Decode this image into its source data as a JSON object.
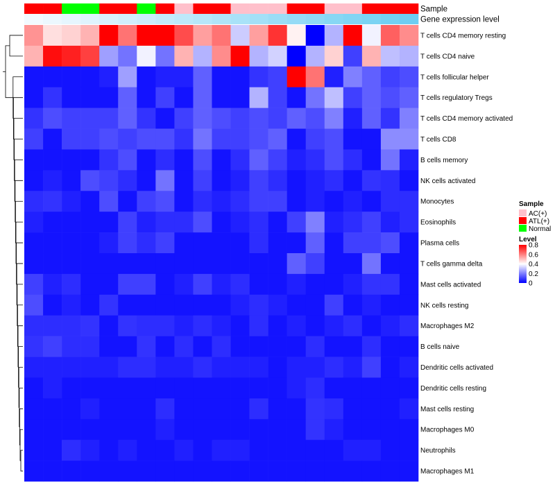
{
  "chart_data": {
    "type": "heatmap",
    "title": "",
    "annotation_tracks": [
      {
        "name": "Sample",
        "values": [
          "ATL(+)",
          "ATL(+)",
          "Normal",
          "Normal",
          "ATL(+)",
          "ATL(+)",
          "Normal",
          "ATL(+)",
          "AC(+)",
          "ATL(+)",
          "ATL(+)",
          "AC(+)",
          "AC(+)",
          "AC(+)",
          "ATL(+)",
          "ATL(+)",
          "AC(+)",
          "AC(+)",
          "ATL(+)",
          "ATL(+)",
          "ATL(+)"
        ]
      },
      {
        "name": "Gene expression level",
        "values": [
          0.02,
          0.06,
          0.1,
          0.14,
          0.19,
          0.23,
          0.27,
          0.32,
          0.36,
          0.4,
          0.45,
          0.49,
          0.53,
          0.58,
          0.62,
          0.66,
          0.71,
          0.75,
          0.79,
          0.84,
          0.88
        ]
      }
    ],
    "rows": [
      "T cells CD4 memory resting",
      "T cells CD4 naive",
      "T cells follicular helper",
      "T cells regulatory  Tregs",
      "T cells CD4 memory activated",
      "T cells CD8",
      "B cells memory",
      "NK cells activated",
      "Monocytes",
      "Eosinophils",
      "Plasma cells",
      "T cells gamma delta",
      "Mast cells activated",
      "NK cells resting",
      "Macrophages M2",
      "B cells naive",
      "Dendritic cells activated",
      "Dendritic cells resting",
      "Mast cells resting",
      "Macrophages M0",
      "Neutrophils",
      "Macrophages M1"
    ],
    "values": [
      [
        0.57,
        0.45,
        0.47,
        0.52,
        0.8,
        0.62,
        0.8,
        0.8,
        0.68,
        0.55,
        0.62,
        0.32,
        0.55,
        0.72,
        0.42,
        0.0,
        0.28,
        0.8,
        0.38,
        0.65,
        0.58
      ],
      [
        0.52,
        0.78,
        0.75,
        0.7,
        0.25,
        0.18,
        0.38,
        0.18,
        0.52,
        0.28,
        0.58,
        0.8,
        0.28,
        0.33,
        0.0,
        0.28,
        0.47,
        0.1,
        0.52,
        0.3,
        0.28
      ],
      [
        0.03,
        0.03,
        0.03,
        0.03,
        0.05,
        0.25,
        0.03,
        0.05,
        0.05,
        0.15,
        0.03,
        0.03,
        0.08,
        0.1,
        0.8,
        0.62,
        0.05,
        0.2,
        0.15,
        0.1,
        0.12
      ],
      [
        0.03,
        0.08,
        0.03,
        0.03,
        0.03,
        0.15,
        0.03,
        0.1,
        0.03,
        0.15,
        0.03,
        0.03,
        0.28,
        0.1,
        0.03,
        0.18,
        0.3,
        0.1,
        0.15,
        0.12,
        0.15
      ],
      [
        0.08,
        0.12,
        0.1,
        0.1,
        0.1,
        0.15,
        0.08,
        0.03,
        0.1,
        0.15,
        0.12,
        0.1,
        0.12,
        0.1,
        0.15,
        0.12,
        0.2,
        0.05,
        0.15,
        0.08,
        0.2
      ],
      [
        0.1,
        0.03,
        0.1,
        0.1,
        0.12,
        0.1,
        0.12,
        0.12,
        0.08,
        0.18,
        0.1,
        0.1,
        0.12,
        0.15,
        0.03,
        0.1,
        0.12,
        0.03,
        0.03,
        0.22,
        0.22
      ],
      [
        0.03,
        0.03,
        0.03,
        0.03,
        0.08,
        0.12,
        0.03,
        0.07,
        0.03,
        0.12,
        0.03,
        0.07,
        0.15,
        0.1,
        0.05,
        0.07,
        0.12,
        0.07,
        0.03,
        0.18,
        0.05
      ],
      [
        0.03,
        0.05,
        0.03,
        0.12,
        0.1,
        0.07,
        0.03,
        0.18,
        0.03,
        0.1,
        0.03,
        0.05,
        0.1,
        0.07,
        0.03,
        0.05,
        0.07,
        0.03,
        0.08,
        0.07,
        0.03
      ],
      [
        0.07,
        0.08,
        0.05,
        0.03,
        0.12,
        0.03,
        0.1,
        0.12,
        0.03,
        0.07,
        0.05,
        0.07,
        0.1,
        0.1,
        0.03,
        0.05,
        0.03,
        0.05,
        0.03,
        0.07,
        0.07
      ],
      [
        0.05,
        0.03,
        0.03,
        0.03,
        0.03,
        0.1,
        0.05,
        0.07,
        0.07,
        0.12,
        0.03,
        0.05,
        0.07,
        0.03,
        0.1,
        0.2,
        0.05,
        0.07,
        0.1,
        0.05,
        0.07
      ],
      [
        0.03,
        0.03,
        0.03,
        0.03,
        0.05,
        0.1,
        0.07,
        0.1,
        0.03,
        0.03,
        0.03,
        0.03,
        0.07,
        0.03,
        0.03,
        0.15,
        0.03,
        0.1,
        0.1,
        0.12,
        0.03
      ],
      [
        0.03,
        0.03,
        0.03,
        0.03,
        0.03,
        0.03,
        0.03,
        0.03,
        0.03,
        0.03,
        0.03,
        0.03,
        0.03,
        0.03,
        0.15,
        0.1,
        0.03,
        0.03,
        0.18,
        0.03,
        0.03
      ],
      [
        0.1,
        0.05,
        0.07,
        0.03,
        0.03,
        0.1,
        0.1,
        0.03,
        0.05,
        0.1,
        0.05,
        0.07,
        0.03,
        0.03,
        0.05,
        0.03,
        0.03,
        0.05,
        0.08,
        0.08,
        0.03
      ],
      [
        0.12,
        0.03,
        0.05,
        0.03,
        0.08,
        0.03,
        0.03,
        0.03,
        0.03,
        0.03,
        0.03,
        0.05,
        0.07,
        0.05,
        0.03,
        0.03,
        0.1,
        0.03,
        0.05,
        0.03,
        0.03
      ],
      [
        0.07,
        0.07,
        0.07,
        0.08,
        0.03,
        0.08,
        0.07,
        0.07,
        0.05,
        0.07,
        0.05,
        0.03,
        0.07,
        0.03,
        0.05,
        0.03,
        0.05,
        0.07,
        0.03,
        0.05,
        0.07
      ],
      [
        0.08,
        0.1,
        0.07,
        0.07,
        0.03,
        0.03,
        0.08,
        0.03,
        0.07,
        0.03,
        0.07,
        0.03,
        0.03,
        0.03,
        0.03,
        0.07,
        0.03,
        0.03,
        0.07,
        0.03,
        0.03
      ],
      [
        0.05,
        0.05,
        0.05,
        0.05,
        0.05,
        0.07,
        0.07,
        0.05,
        0.05,
        0.07,
        0.05,
        0.05,
        0.05,
        0.03,
        0.05,
        0.05,
        0.07,
        0.05,
        0.1,
        0.03,
        0.05
      ],
      [
        0.03,
        0.05,
        0.03,
        0.03,
        0.03,
        0.03,
        0.03,
        0.03,
        0.03,
        0.03,
        0.03,
        0.03,
        0.03,
        0.03,
        0.05,
        0.07,
        0.03,
        0.03,
        0.03,
        0.03,
        0.03
      ],
      [
        0.03,
        0.03,
        0.03,
        0.05,
        0.03,
        0.03,
        0.03,
        0.07,
        0.03,
        0.03,
        0.03,
        0.03,
        0.07,
        0.03,
        0.03,
        0.08,
        0.07,
        0.03,
        0.03,
        0.03,
        0.05
      ],
      [
        0.03,
        0.03,
        0.03,
        0.03,
        0.03,
        0.03,
        0.03,
        0.05,
        0.03,
        0.03,
        0.03,
        0.03,
        0.03,
        0.03,
        0.03,
        0.08,
        0.05,
        0.03,
        0.03,
        0.03,
        0.03
      ],
      [
        0.03,
        0.03,
        0.07,
        0.05,
        0.03,
        0.05,
        0.03,
        0.03,
        0.05,
        0.03,
        0.05,
        0.05,
        0.03,
        0.03,
        0.03,
        0.03,
        0.03,
        0.05,
        0.05,
        0.03,
        0.03
      ],
      [
        0.03,
        0.03,
        0.03,
        0.03,
        0.03,
        0.03,
        0.03,
        0.03,
        0.03,
        0.03,
        0.03,
        0.03,
        0.03,
        0.03,
        0.03,
        0.03,
        0.03,
        0.03,
        0.03,
        0.03,
        0.03
      ]
    ],
    "color_scale": {
      "min": 0,
      "max": 0.8,
      "low": "#0000ff",
      "mid": "#ffffff",
      "high": "#ff0000",
      "mid_value": 0.4
    },
    "legends": {
      "sample": {
        "title": "Sample",
        "entries": [
          {
            "label": "AC(+)",
            "color": "#ffc0cb"
          },
          {
            "label": "ATL(+)",
            "color": "#ff0000"
          },
          {
            "label": "Normal",
            "color": "#00ff00"
          }
        ]
      },
      "level": {
        "title": "Level",
        "ticks": [
          "0.8",
          "0.6",
          "0.4",
          "0.2",
          "0"
        ]
      }
    },
    "track_colors": {
      "gene_low": "#f5fbff",
      "gene_high": "#5ac8f0"
    },
    "dendrogram": "row-clustering"
  }
}
